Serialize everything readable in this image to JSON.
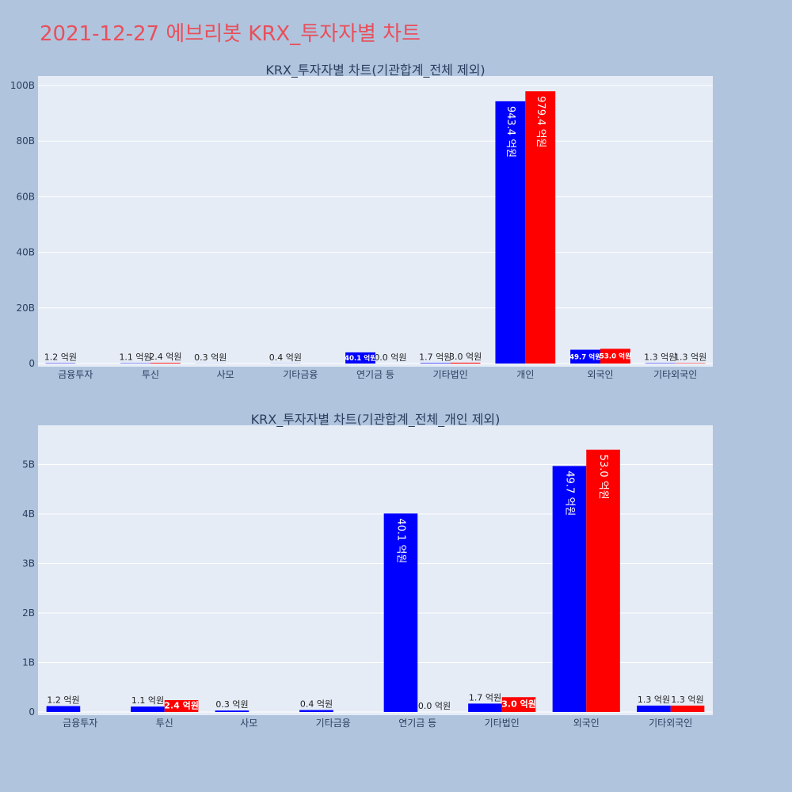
{
  "page": {
    "title": "2021-12-27 에브리봇 KRX_투자자별 차트"
  },
  "colors": {
    "background": "#b0c4de",
    "plot_bg": "#e5ecf6",
    "title": "#e8505b",
    "sell": "#0000ff",
    "buy": "#ff0000",
    "text": "#2a3f5f"
  },
  "chart_data": [
    {
      "type": "bar",
      "title": "KRX_투자자별 차트(기관합계_전체 제외)",
      "categories": [
        "금융투자",
        "투신",
        "사모",
        "기타금융",
        "연기금 등",
        "기타법인",
        "개인",
        "외국인",
        "기타외국인"
      ],
      "ylim": [
        0,
        100
      ],
      "yticks": [
        "0",
        "20B",
        "40B",
        "60B",
        "80B",
        "100B"
      ],
      "ytick_values": [
        0,
        20,
        40,
        60,
        80,
        100
      ],
      "series": [
        {
          "color": "#0000ff",
          "values": [
            0.12,
            0.11,
            0.03,
            0.04,
            4.01,
            0.17,
            94.34,
            4.97,
            0.13
          ],
          "labels": [
            "1.2 억원",
            "1.1 억원",
            "0.3 억원",
            "0.4 억원",
            "40.1 억원",
            "1.7 억원",
            "943.4 억원",
            "49.7 억원",
            "1.3 억원"
          ]
        },
        {
          "color": "#ff0000",
          "values": [
            0,
            0.24,
            0,
            0,
            0.0,
            0.3,
            97.94,
            5.3,
            0.13
          ],
          "labels": [
            "",
            "2.4 억원",
            "",
            "",
            "0.0 억원",
            "3.0 억원",
            "979.4 억원",
            "53.0 억원",
            "1.3 억원"
          ]
        }
      ]
    },
    {
      "type": "bar",
      "title": "KRX_투자자별 차트(기관합계_전체_개인 제외)",
      "categories": [
        "금융투자",
        "투신",
        "사모",
        "기타금융",
        "연기금 등",
        "기타법인",
        "외국인",
        "기타외국인"
      ],
      "ylim": [
        0,
        5.6
      ],
      "yticks": [
        "0",
        "1B",
        "2B",
        "3B",
        "4B",
        "5B"
      ],
      "ytick_values": [
        0,
        1,
        2,
        3,
        4,
        5
      ],
      "series": [
        {
          "color": "#0000ff",
          "values": [
            0.12,
            0.11,
            0.03,
            0.04,
            4.01,
            0.17,
            4.97,
            0.13
          ],
          "labels": [
            "1.2 억원",
            "1.1 억원",
            "0.3 억원",
            "0.4 억원",
            "40.1 억원",
            "1.7 억원",
            "49.7 억원",
            "1.3 억원"
          ]
        },
        {
          "color": "#ff0000",
          "values": [
            0,
            0.24,
            0,
            0,
            0.0,
            0.3,
            5.3,
            0.13
          ],
          "labels": [
            "",
            "2.4 억원",
            "",
            "",
            "0.0 억원",
            "3.0 억원",
            "53.0 억원",
            "1.3 억원"
          ]
        }
      ]
    }
  ]
}
